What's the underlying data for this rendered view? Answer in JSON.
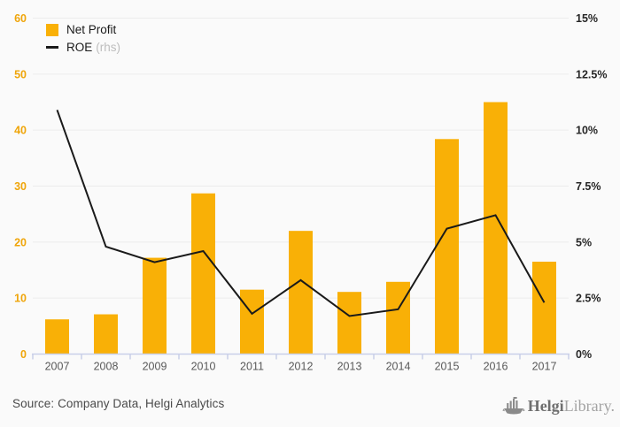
{
  "chart_data": {
    "type": "bar",
    "categories": [
      "2007",
      "2008",
      "2009",
      "2010",
      "2011",
      "2012",
      "2013",
      "2014",
      "2015",
      "2016",
      "2017"
    ],
    "series": [
      {
        "name": "Net Profit",
        "type": "bar",
        "axis": "left",
        "color": "#F9B006",
        "values": [
          6.2,
          7.1,
          17.2,
          28.7,
          11.5,
          22.0,
          11.1,
          12.9,
          38.4,
          45.0,
          16.5
        ]
      },
      {
        "name": "ROE",
        "note": "(rhs)",
        "type": "line",
        "axis": "right",
        "color": "#1A1A1A",
        "values": [
          10.9,
          4.8,
          4.1,
          4.6,
          1.8,
          3.3,
          1.7,
          2.0,
          5.6,
          6.2,
          2.3
        ]
      }
    ],
    "title": "",
    "xlabel": "",
    "ylabel": "",
    "left_axis": {
      "ticks": [
        0,
        10,
        20,
        30,
        40,
        50,
        60
      ],
      "range": [
        0,
        60
      ],
      "label_color": "#EFA50A"
    },
    "right_axis": {
      "ticks": [
        "0%",
        "2.5%",
        "5%",
        "7.5%",
        "10%",
        "12.5%",
        "15%"
      ],
      "tick_values": [
        0,
        2.5,
        5,
        7.5,
        10,
        12.5,
        15
      ],
      "range": [
        0,
        15
      ],
      "label_color": "#262626"
    },
    "grid": true,
    "gridline_color": "#ECECEC",
    "axis_line_color": "#C9CFE8",
    "x_label_color": "#595959",
    "legend_position": "top-left"
  },
  "legend": {
    "items": [
      {
        "label": "Net Profit",
        "note": ""
      },
      {
        "label": "ROE",
        "note": "(rhs)"
      }
    ]
  },
  "footer": {
    "source": "Source: Company Data, Helgi Analytics",
    "logo_helgi": "Helgi",
    "logo_library": "Library."
  }
}
